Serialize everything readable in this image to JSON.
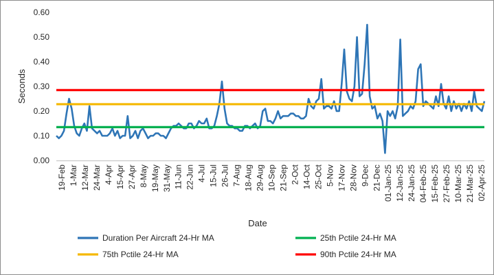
{
  "chart_data": {
    "type": "line",
    "xlabel": "Date",
    "ylabel": "Seconds",
    "ylim": [
      0,
      0.6
    ],
    "yticks": [
      "0.00",
      "0.10",
      "0.20",
      "0.30",
      "0.40",
      "0.50",
      "0.60"
    ],
    "xticks": [
      "19-Feb",
      "1-Mar",
      "12-Mar",
      "24-Mar",
      "4-Apr",
      "15-Apr",
      "27-Apr",
      "8-May",
      "19-May",
      "31-May",
      "11-Jun",
      "22-Jun",
      "4-Jul",
      "15-Jul",
      "26-Jul",
      "7-Aug",
      "18-Aug",
      "29-Aug",
      "10-Sep",
      "21-Sep",
      "2-Oct",
      "14-Oct",
      "25-Oct",
      "5-Nov",
      "17-Nov",
      "28-Nov",
      "9-Dec",
      "21-Dec",
      "01-Jan-25",
      "12-Jan-25",
      "24-Jan-25",
      "04-Feb-25",
      "15-Feb-25",
      "27-Feb-25",
      "10-Mar-25",
      "21-Mar-25",
      "02-Apr-25"
    ],
    "grid": false,
    "legend_position": "bottom",
    "series": [
      {
        "name": "Duration Per Aircraft 24-Hr MA",
        "color": "#2e75b6",
        "y": [
          0.1,
          0.09,
          0.1,
          0.12,
          0.19,
          0.25,
          0.21,
          0.14,
          0.11,
          0.1,
          0.13,
          0.15,
          0.12,
          0.22,
          0.13,
          0.12,
          0.11,
          0.12,
          0.1,
          0.1,
          0.1,
          0.11,
          0.13,
          0.1,
          0.12,
          0.09,
          0.1,
          0.1,
          0.18,
          0.09,
          0.1,
          0.12,
          0.09,
          0.12,
          0.13,
          0.11,
          0.09,
          0.1,
          0.1,
          0.11,
          0.11,
          0.1,
          0.1,
          0.09,
          0.11,
          0.13,
          0.14,
          0.14,
          0.15,
          0.14,
          0.13,
          0.13,
          0.15,
          0.15,
          0.13,
          0.14,
          0.16,
          0.15,
          0.15,
          0.17,
          0.13,
          0.13,
          0.14,
          0.18,
          0.23,
          0.32,
          0.21,
          0.15,
          0.14,
          0.14,
          0.13,
          0.13,
          0.12,
          0.12,
          0.14,
          0.14,
          0.13,
          0.14,
          0.15,
          0.13,
          0.14,
          0.2,
          0.21,
          0.16,
          0.16,
          0.15,
          0.17,
          0.2,
          0.17,
          0.18,
          0.18,
          0.18,
          0.19,
          0.19,
          0.18,
          0.18,
          0.17,
          0.17,
          0.18,
          0.25,
          0.22,
          0.21,
          0.24,
          0.25,
          0.33,
          0.21,
          0.22,
          0.22,
          0.21,
          0.24,
          0.2,
          0.2,
          0.31,
          0.45,
          0.28,
          0.25,
          0.24,
          0.3,
          0.5,
          0.26,
          0.27,
          0.39,
          0.55,
          0.26,
          0.21,
          0.22,
          0.17,
          0.19,
          0.16,
          0.03,
          0.2,
          0.18,
          0.2,
          0.17,
          0.22,
          0.49,
          0.18,
          0.19,
          0.2,
          0.22,
          0.21,
          0.24,
          0.37,
          0.39,
          0.22,
          0.24,
          0.23,
          0.22,
          0.21,
          0.26,
          0.22,
          0.31,
          0.23,
          0.21,
          0.26,
          0.2,
          0.24,
          0.21,
          0.23,
          0.2,
          0.23,
          0.21,
          0.24,
          0.2,
          0.28,
          0.22,
          0.21,
          0.2,
          0.24
        ]
      },
      {
        "name": "25th Pctile 24-Hr MA",
        "color": "#00b050",
        "value": 0.135
      },
      {
        "name": "75th Pctile 24-Hr MA",
        "color": "#f5b800",
        "value": 0.228
      },
      {
        "name": "90th Pctile 24-Hr MA",
        "color": "#ff0000",
        "value": 0.285
      }
    ]
  }
}
